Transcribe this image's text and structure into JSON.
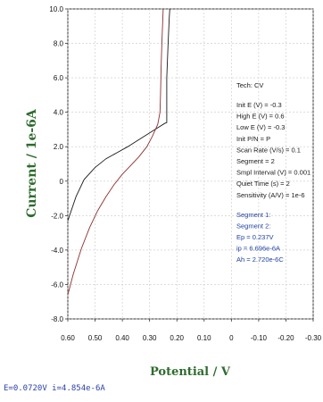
{
  "chart_data": {
    "type": "line",
    "xlabel": "Potential / V",
    "ylabel": "Current / 1e-6A",
    "xlim": [
      0.6,
      -0.3
    ],
    "ylim": [
      -8.0,
      10.0
    ],
    "x_reversed": true,
    "x_ticks": [
      "0.60",
      "0.50",
      "0.40",
      "0.30",
      "0.20",
      "0.10",
      "0",
      "-0.10",
      "-0.20",
      "-0.30"
    ],
    "x_tick_values": [
      0.6,
      0.5,
      0.4,
      0.3,
      0.2,
      0.1,
      0,
      -0.1,
      -0.2,
      -0.3
    ],
    "y_ticks": [
      "10.0",
      "8.0",
      "6.0",
      "4.0",
      "2.0",
      "0",
      "-2.0",
      "-4.0",
      "-6.0",
      "-8.0"
    ],
    "y_tick_values": [
      10,
      8,
      6,
      4,
      2,
      0,
      -2,
      -4,
      -6,
      -8
    ],
    "grid": true,
    "series": [
      {
        "color": "#1a1a1a",
        "x": [
          0.6,
          0.57,
          0.54,
          0.5,
          0.46,
          0.42,
          0.38,
          0.34,
          0.3,
          0.27,
          0.245,
          0.237,
          0.237,
          0.232,
          0.228,
          0.226
        ],
        "y": [
          -2.3,
          -0.9,
          0.1,
          0.8,
          1.3,
          1.65,
          2.0,
          2.4,
          2.8,
          3.1,
          3.35,
          3.4,
          6.0,
          8.0,
          9.5,
          10.0
        ]
      },
      {
        "color": "#8c2f2f",
        "x": [
          0.6,
          0.58,
          0.55,
          0.52,
          0.49,
          0.46,
          0.43,
          0.4,
          0.37,
          0.34,
          0.31,
          0.29,
          0.27,
          0.262,
          0.26,
          0.258,
          0.255,
          0.252,
          0.25
        ],
        "y": [
          -6.6,
          -5.4,
          -3.9,
          -2.7,
          -1.7,
          -0.9,
          -0.2,
          0.4,
          0.9,
          1.4,
          2.0,
          2.6,
          3.3,
          4.0,
          5.0,
          6.5,
          8.0,
          9.2,
          10.0
        ]
      }
    ],
    "annotations": {
      "settings": [
        "Tech: CV",
        "Init E (V) = -0.3",
        "High E (V) = 0.6",
        "Low E (V) = -0.3",
        "Init P/N = P",
        "Scan Rate (V/s) = 0.1",
        "Segment = 2",
        "Smpl Interval (V) = 0.001",
        "Quiet Time (s) = 2",
        "Sensitivity (A/V) = 1e-6"
      ],
      "results": [
        "Segment 1:",
        "Segment 2:",
        "Ep = 0.237V",
        "ip = 6.696e-6A",
        "Ah = 2.720e-6C"
      ]
    }
  },
  "readout": "E=0.0720V  i=4.854e-6A"
}
